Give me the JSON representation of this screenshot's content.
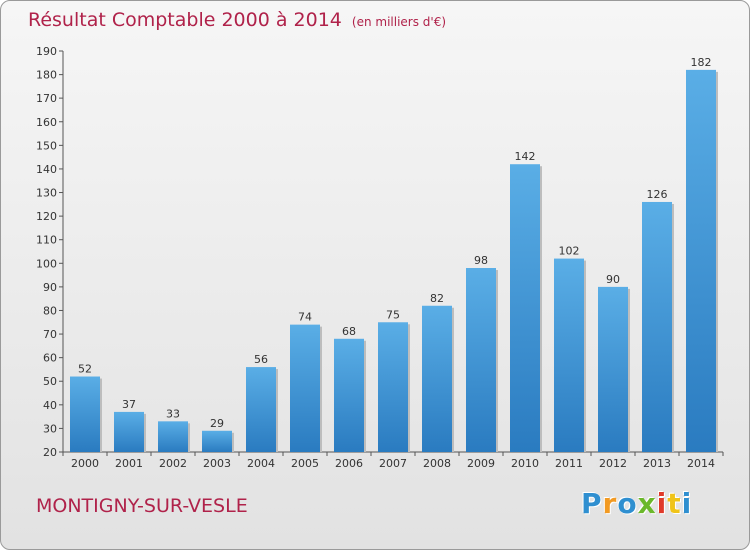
{
  "header": {
    "title": "Résultat Comptable 2000 à 2014",
    "subtitle": "(en milliers d'€)"
  },
  "footer": {
    "commune": "MONTIGNY-SUR-VESLE",
    "logo_text": "Proxiti",
    "logo_colors": [
      "#2f8fd0",
      "#f29a22",
      "#2f8fd0",
      "#6bb82a",
      "#e03a2a",
      "#f0c419",
      "#2f8fd0"
    ]
  },
  "chart_data": {
    "type": "bar",
    "categories": [
      "2000",
      "2001",
      "2002",
      "2003",
      "2004",
      "2005",
      "2006",
      "2007",
      "2008",
      "2009",
      "2010",
      "2011",
      "2012",
      "2013",
      "2014"
    ],
    "values": [
      52,
      37,
      33,
      29,
      56,
      74,
      68,
      75,
      82,
      98,
      142,
      102,
      90,
      126,
      182
    ],
    "ylim": [
      20,
      190
    ],
    "yticks": [
      20,
      30,
      40,
      50,
      60,
      70,
      80,
      90,
      100,
      110,
      120,
      130,
      140,
      150,
      160,
      170,
      180,
      190
    ],
    "grid": false,
    "bar_color": "#3d94d6",
    "bar_color_light": "#5aaee6",
    "bar_color_dark": "#2a7bc0"
  }
}
